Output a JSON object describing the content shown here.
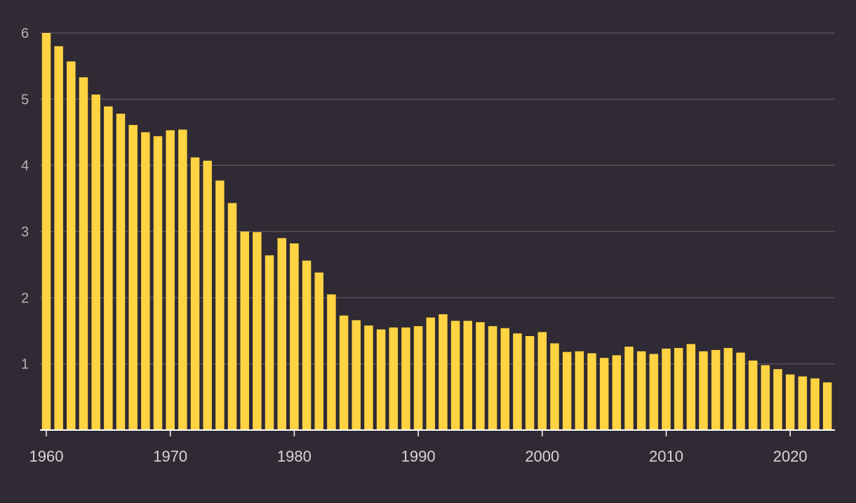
{
  "chart_data": {
    "type": "bar",
    "title": "",
    "xlabel": "",
    "ylabel": "",
    "ylim": [
      0,
      6
    ],
    "y_ticks": [
      1,
      2,
      3,
      4,
      5,
      6
    ],
    "x_ticks": [
      1960,
      1970,
      1980,
      1990,
      2000,
      2010,
      2020
    ],
    "grid": true,
    "bar_color": "#ffd342",
    "background_color": "#2f2a33",
    "categories": [
      1960,
      1961,
      1962,
      1963,
      1964,
      1965,
      1966,
      1967,
      1968,
      1969,
      1970,
      1971,
      1972,
      1973,
      1974,
      1975,
      1976,
      1977,
      1978,
      1979,
      1980,
      1981,
      1982,
      1983,
      1984,
      1985,
      1986,
      1987,
      1988,
      1989,
      1990,
      1991,
      1992,
      1993,
      1994,
      1995,
      1996,
      1997,
      1998,
      1999,
      2000,
      2001,
      2002,
      2003,
      2004,
      2005,
      2006,
      2007,
      2008,
      2009,
      2010,
      2011,
      2012,
      2013,
      2014,
      2015,
      2016,
      2017,
      2018,
      2019,
      2020,
      2021,
      2022,
      2023
    ],
    "values": [
      6.0,
      5.8,
      5.57,
      5.33,
      5.07,
      4.89,
      4.78,
      4.61,
      4.5,
      4.44,
      4.53,
      4.54,
      4.12,
      4.07,
      3.77,
      3.43,
      3.0,
      2.99,
      2.64,
      2.9,
      2.82,
      2.56,
      2.38,
      2.05,
      1.73,
      1.66,
      1.58,
      1.52,
      1.55,
      1.55,
      1.57,
      1.7,
      1.75,
      1.65,
      1.65,
      1.63,
      1.57,
      1.54,
      1.46,
      1.42,
      1.48,
      1.31,
      1.18,
      1.19,
      1.16,
      1.09,
      1.13,
      1.26,
      1.19,
      1.15,
      1.23,
      1.24,
      1.3,
      1.19,
      1.21,
      1.24,
      1.17,
      1.05,
      0.98,
      0.92,
      0.84,
      0.81,
      0.78,
      0.72
    ]
  }
}
